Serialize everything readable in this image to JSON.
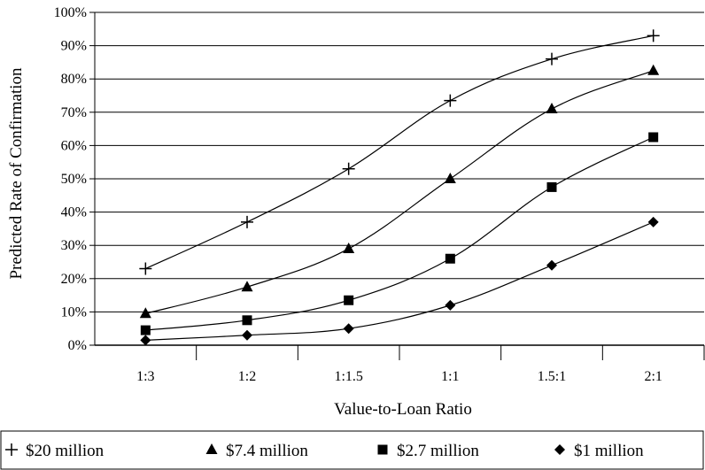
{
  "chart_data": {
    "type": "line",
    "xlabel": "Value-to-Loan Ratio",
    "ylabel": "Predicted Rate of Confirmation",
    "categories": [
      "1:3",
      "1:2",
      "1:1.5",
      "1:1",
      "1.5:1",
      "2:1"
    ],
    "ylim": [
      0,
      100
    ],
    "yticks": [
      "0%",
      "10%",
      "20%",
      "30%",
      "40%",
      "50%",
      "60%",
      "70%",
      "80%",
      "90%",
      "100%"
    ],
    "grid": true,
    "legend_position": "bottom",
    "series": [
      {
        "name": "$20 million",
        "marker": "plus",
        "values": [
          23,
          37,
          53,
          73.5,
          86,
          93
        ]
      },
      {
        "name": "$7.4 million",
        "marker": "triangle",
        "values": [
          9.5,
          17.5,
          29,
          50,
          71,
          82.5
        ]
      },
      {
        "name": "$2.7 million",
        "marker": "square",
        "values": [
          4.5,
          7.5,
          13.5,
          26,
          47.5,
          62.5
        ]
      },
      {
        "name": "$1 million",
        "marker": "diamond",
        "values": [
          1.5,
          3,
          5,
          12,
          24,
          37
        ]
      }
    ]
  }
}
